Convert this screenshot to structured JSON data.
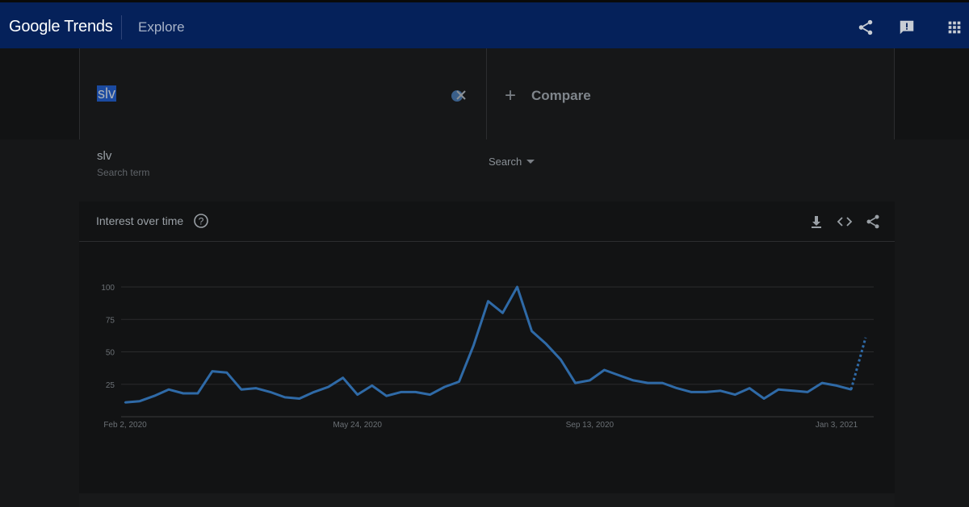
{
  "header": {
    "logo_text": "Google Trends",
    "section_title": "Explore",
    "icons": [
      "share-icon",
      "feedback-icon",
      "apps-grid-icon"
    ],
    "bar_color": "#05215a"
  },
  "search": {
    "term": "slv",
    "compare_label": "Compare"
  },
  "filter": {
    "term": "slv",
    "term_type": "Search term",
    "dropdown_value": "Search"
  },
  "card": {
    "title": "Interest over time",
    "icons": [
      "help-icon",
      "download-icon",
      "embed-icon",
      "share-icon"
    ]
  },
  "chart_data": {
    "type": "line",
    "title": "Interest over time",
    "xlabel": "",
    "ylabel": "",
    "ylim": [
      0,
      100
    ],
    "yticks": [
      25,
      50,
      75,
      100
    ],
    "xtick_labels": [
      "Feb 2, 2020",
      "May 24, 2020",
      "Sep 13, 2020",
      "Jan 3, 2021"
    ],
    "xtick_index": [
      0,
      16,
      32,
      49
    ],
    "line_color": "#2f6aa7",
    "series": [
      {
        "values": [
          11,
          12,
          16,
          21,
          18,
          18,
          35,
          34,
          21,
          22,
          19,
          15,
          14,
          19,
          23,
          30,
          17,
          24,
          16,
          19,
          19,
          17,
          23,
          27,
          55,
          89,
          80,
          100,
          66,
          56,
          44,
          26,
          28,
          36,
          32,
          28,
          26,
          26,
          22,
          19,
          19,
          20,
          17,
          22,
          14,
          21,
          20,
          19,
          26,
          24,
          21
        ]
      }
    ],
    "partial_last_value": 61,
    "grid": true
  }
}
